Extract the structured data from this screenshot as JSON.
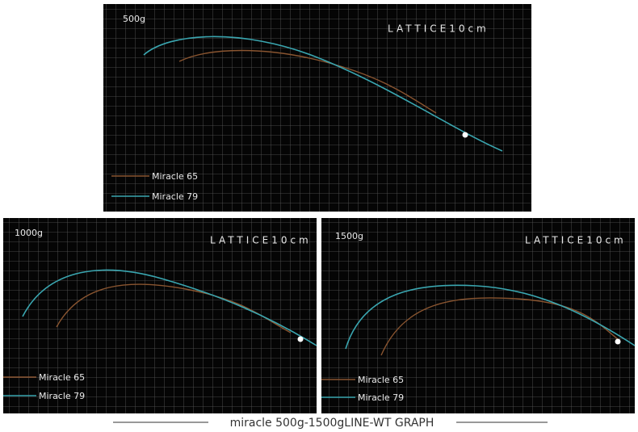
{
  "panels": [
    {
      "weight": "500g",
      "lattice": "LATTICE10cm",
      "legend": [
        "Miracle 65",
        "Miracle 79"
      ]
    },
    {
      "weight": "1000g",
      "lattice": "LATTICE10cm",
      "legend": [
        "Miracle 65",
        "Miracle 79"
      ]
    },
    {
      "weight": "1500g",
      "lattice": "LATTICE10cm",
      "legend": [
        "Miracle 65",
        "Miracle 79"
      ]
    }
  ],
  "caption": "miracle 500g-1500gLINE-WT GRAPH"
}
